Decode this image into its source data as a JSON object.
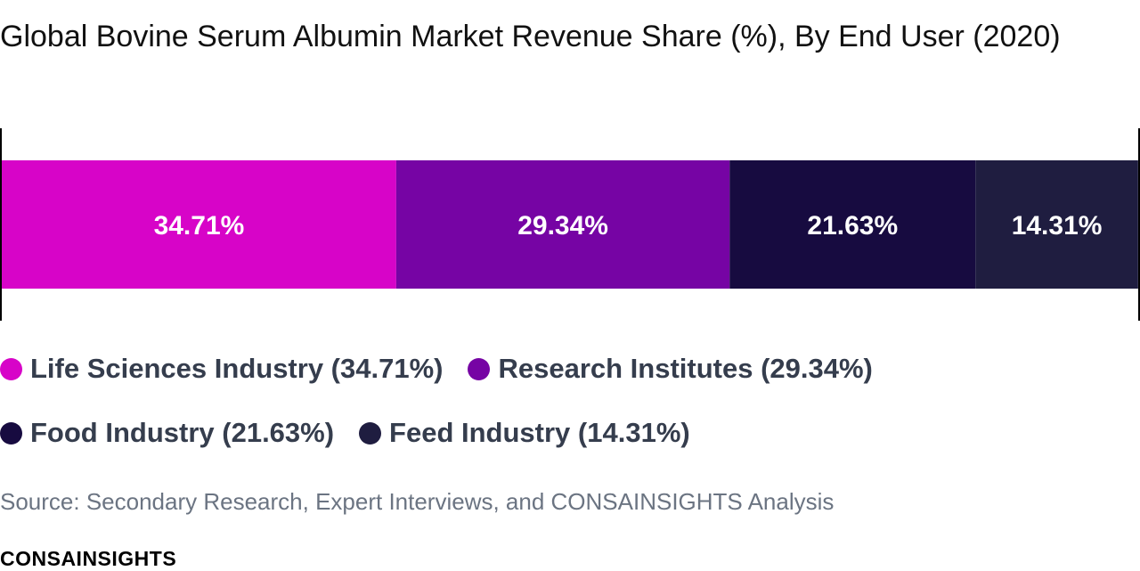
{
  "title": "Global Bovine Serum Albumin Market Revenue Share (%), By End User (2020)",
  "chart_data": {
    "type": "bar",
    "orientation": "horizontal-stacked-100",
    "title": "Global Bovine Serum Albumin Market Revenue Share (%), By End User (2020)",
    "xlim": [
      0,
      100
    ],
    "grid": false,
    "legend_position": "bottom",
    "series": [
      {
        "name": "Life Sciences Industry",
        "value": 34.71,
        "label": "34.71%",
        "legend_label": "Life Sciences Industry (34.71%)",
        "color": "#d704c8"
      },
      {
        "name": "Research Institutes",
        "value": 29.34,
        "label": "29.34%",
        "legend_label": "Research Institutes (29.34%)",
        "color": "#7604a4"
      },
      {
        "name": "Food Industry",
        "value": 21.63,
        "label": "21.63%",
        "legend_label": "Food Industry (21.63%)",
        "color": "#170b40"
      },
      {
        "name": "Feed Industry",
        "value": 14.31,
        "label": "14.31%",
        "legend_label": "Feed Industry (14.31%)",
        "color": "#1f1d40"
      }
    ]
  },
  "source": "Source: Secondary Research, Expert Interviews, and CONSAINSIGHTS Analysis",
  "brand": "CONSAINSIGHTS",
  "colors": {
    "label_text": "#ffffff",
    "legend_text": "#353d4d",
    "source_text": "#6b7482"
  }
}
